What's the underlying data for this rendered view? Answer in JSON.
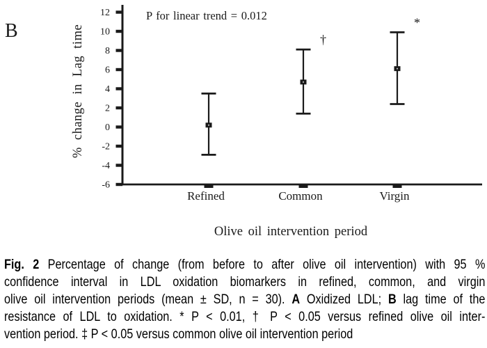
{
  "chart_data": {
    "type": "scatter",
    "panel_label": "B",
    "annotation": "P for linear trend = 0.012",
    "categories": [
      "Refined",
      "Common",
      "Virgin"
    ],
    "series": [
      {
        "name": "% change in Lag time",
        "means": [
          0.2,
          4.7,
          6.1
        ],
        "ci_low": [
          -2.9,
          1.4,
          2.4
        ],
        "ci_high": [
          3.5,
          8.1,
          9.9
        ],
        "sig_markers": [
          "",
          "†",
          "*"
        ]
      }
    ],
    "xlabel": "Olive oil intervention period",
    "ylabel": "% change in Lag time",
    "ylim": [
      -6,
      12
    ],
    "yticks": [
      -6,
      -4,
      -2,
      0,
      2,
      4,
      6,
      8,
      10,
      12
    ],
    "grid": false,
    "legend_position": "none",
    "marker_style": "filled-square",
    "error_bar_style": "capped 95% confidence interval",
    "ink_color": "#1a1a1a",
    "background_color": "#ffffff"
  },
  "caption": {
    "lines": [
      [
        {
          "t": "Fig. 2",
          "b": true
        },
        {
          "t": "  Percentage of change (from before to after olive oil intervention) with 95 %",
          "b": false
        }
      ],
      [
        {
          "t": "confidence interval in LDL oxidation biomarkers in refined, common, and virgin",
          "b": false
        }
      ],
      [
        {
          "t": "olive oil intervention periods (mean ± SD, n = 30). ",
          "b": false
        },
        {
          "t": "A",
          "b": true
        },
        {
          "t": " Oxidized LDL; ",
          "b": false
        },
        {
          "t": "B",
          "b": true
        },
        {
          "t": " lag time of the",
          "b": false
        }
      ],
      [
        {
          "t": "resistance of LDL to oxidation. * P < 0.01, † P < 0.05 versus refined olive oil inter-",
          "b": false
        }
      ],
      [
        {
          "t": "vention period. ‡ P < 0.05 versus common olive oil intervention period",
          "b": false
        }
      ]
    ]
  }
}
